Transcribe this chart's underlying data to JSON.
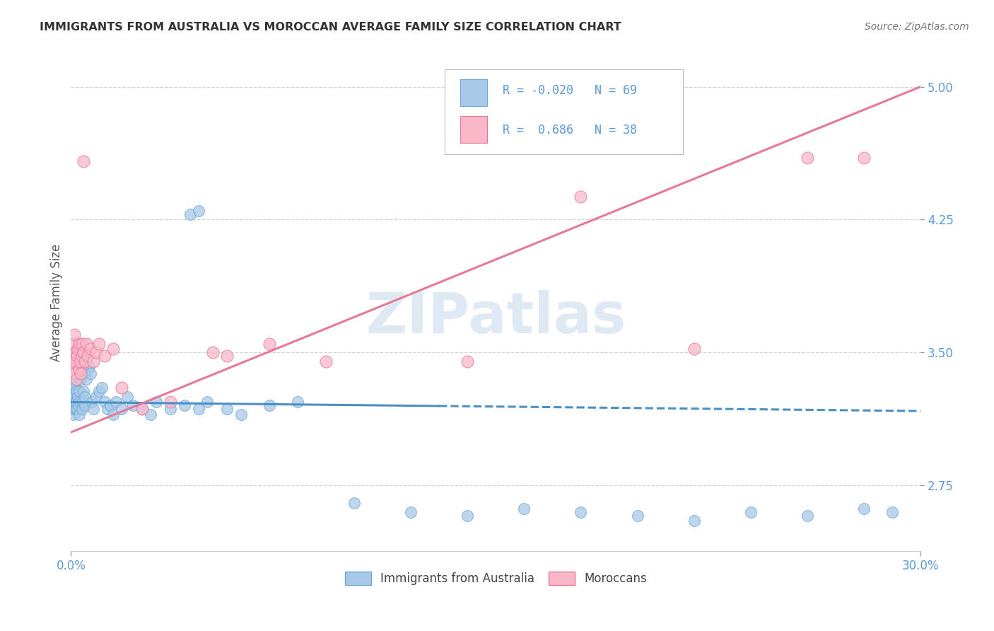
{
  "title": "IMMIGRANTS FROM AUSTRALIA VS MOROCCAN AVERAGE FAMILY SIZE CORRELATION CHART",
  "source": "Source: ZipAtlas.com",
  "ylabel": "Average Family Size",
  "y_ticks": [
    2.75,
    3.5,
    4.25,
    5.0
  ],
  "x_min": 0.0,
  "x_max": 30.0,
  "y_min": 2.38,
  "y_max": 5.18,
  "watermark_text": "ZIPatlas",
  "blue_name": "Immigrants from Australia",
  "pink_name": "Moroccans",
  "blue_color": "#a8c8e8",
  "blue_edge": "#6aaad4",
  "blue_trend_color": "#4a90c4",
  "pink_color": "#f8b8c8",
  "pink_edge": "#e87898",
  "pink_trend_color": "#e87898",
  "R_blue": "-0.020",
  "N_blue": "69",
  "R_pink": "0.686",
  "N_pink": "38",
  "tick_color": "#5b9bd5",
  "title_color": "#333333",
  "source_color": "#777777",
  "grid_color": "#cccccc",
  "bg_color": "#ffffff",
  "blue_trend_y0": 3.22,
  "blue_trend_y30": 3.17,
  "pink_trend_y0": 3.05,
  "pink_trend_y30": 5.0,
  "blue_solid_end_x": 13.0,
  "blue_x": [
    0.04,
    0.05,
    0.06,
    0.07,
    0.08,
    0.09,
    0.1,
    0.11,
    0.12,
    0.13,
    0.14,
    0.15,
    0.16,
    0.17,
    0.18,
    0.19,
    0.2,
    0.22,
    0.24,
    0.26,
    0.28,
    0.3,
    0.32,
    0.35,
    0.38,
    0.4,
    0.42,
    0.45,
    0.48,
    0.5,
    0.55,
    0.6,
    0.65,
    0.7,
    0.75,
    0.8,
    0.9,
    1.0,
    1.1,
    1.2,
    1.3,
    1.4,
    1.5,
    1.6,
    1.8,
    2.0,
    2.2,
    2.5,
    2.8,
    3.0,
    3.5,
    4.0,
    4.5,
    4.8,
    5.5,
    6.0,
    7.0,
    8.0,
    10.0,
    12.0,
    14.0,
    16.0,
    18.0,
    20.0,
    22.0,
    24.0,
    26.0,
    28.0,
    29.0
  ],
  "blue_y": [
    3.22,
    3.18,
    3.25,
    3.3,
    3.22,
    3.15,
    3.28,
    3.32,
    3.2,
    3.18,
    3.25,
    3.3,
    3.18,
    3.22,
    3.35,
    3.28,
    3.22,
    3.18,
    3.25,
    3.2,
    3.15,
    3.28,
    3.22,
    3.35,
    3.18,
    3.4,
    3.22,
    3.28,
    3.2,
    3.25,
    3.35,
    3.4,
    3.42,
    3.38,
    3.22,
    3.18,
    3.25,
    3.28,
    3.3,
    3.22,
    3.18,
    3.2,
    3.15,
    3.22,
    3.18,
    3.25,
    3.2,
    3.18,
    3.15,
    3.22,
    3.18,
    3.2,
    3.18,
    3.22,
    3.18,
    3.15,
    3.2,
    3.22,
    2.65,
    2.6,
    2.58,
    2.62,
    2.6,
    2.58,
    2.55,
    2.6,
    2.58,
    2.62,
    2.6
  ],
  "pink_x": [
    0.04,
    0.06,
    0.08,
    0.1,
    0.12,
    0.14,
    0.16,
    0.18,
    0.2,
    0.22,
    0.25,
    0.28,
    0.3,
    0.32,
    0.35,
    0.38,
    0.4,
    0.45,
    0.5,
    0.55,
    0.6,
    0.7,
    0.8,
    0.9,
    1.0,
    1.2,
    1.5,
    1.8,
    2.5,
    3.5,
    5.0,
    7.0,
    9.0,
    14.0,
    18.0,
    22.0,
    26.0,
    28.0
  ],
  "pink_y": [
    3.45,
    3.5,
    3.55,
    3.42,
    3.6,
    3.38,
    3.45,
    3.5,
    3.35,
    3.48,
    3.52,
    3.4,
    3.55,
    3.45,
    3.38,
    3.48,
    3.55,
    3.5,
    3.45,
    3.55,
    3.48,
    3.52,
    3.45,
    3.5,
    3.55,
    3.48,
    3.52,
    3.3,
    3.18,
    3.22,
    3.5,
    3.55,
    3.45,
    3.45,
    4.38,
    3.52,
    4.6,
    4.6
  ]
}
